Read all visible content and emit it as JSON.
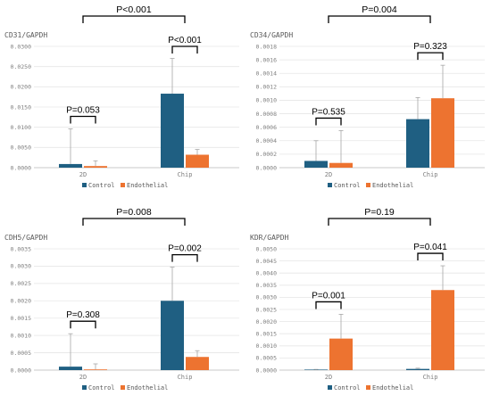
{
  "colors": {
    "control": "#1f5f82",
    "endothelial": "#ed7330",
    "grid": "#e6e6e6",
    "axis": "#c8c8c8",
    "error": "#a6a6a6"
  },
  "legend": [
    "Control",
    "Endothelial"
  ],
  "chart_data": [
    {
      "type": "bar",
      "title": "CD31/GAPDH",
      "categories": [
        "2D",
        "Chip"
      ],
      "series": [
        {
          "name": "Control",
          "values": [
            0.0009,
            0.0183
          ],
          "errors": [
            0.0087,
            0.0087
          ]
        },
        {
          "name": "Endothelial",
          "values": [
            0.0004,
            0.0032
          ],
          "errors": [
            0.0013,
            0.0013
          ]
        }
      ],
      "ylim": [
        0,
        0.03
      ],
      "yticks": [
        "0.0300",
        "0.0250",
        "0.0200",
        "0.0150",
        "0.0100",
        "0.0050",
        "0.0000"
      ],
      "brackets": [
        {
          "label": "P=0.053",
          "scope": "2D"
        },
        {
          "label": "P<0.001",
          "scope": "Chip"
        },
        {
          "label": "P<0.001",
          "scope": "2D vs Chip"
        }
      ],
      "grid": true
    },
    {
      "type": "bar",
      "title": "CD34/GAPDH",
      "categories": [
        "2D",
        "Chip"
      ],
      "series": [
        {
          "name": "Control",
          "values": [
            0.0001,
            0.00072
          ],
          "errors": [
            0.0003,
            0.00032
          ]
        },
        {
          "name": "Endothelial",
          "values": [
            7e-05,
            0.00103
          ],
          "errors": [
            0.00048,
            0.00049
          ]
        }
      ],
      "ylim": [
        0,
        0.0018
      ],
      "yticks": [
        "0.0018",
        "0.0016",
        "0.0014",
        "0.0012",
        "0.0010",
        "0.0008",
        "0.0006",
        "0.0004",
        "0.0002",
        "0.0000"
      ],
      "brackets": [
        {
          "label": "P=0.535",
          "scope": "2D"
        },
        {
          "label": "P=0.323",
          "scope": "Chip"
        },
        {
          "label": "P=0.004",
          "scope": "2D vs Chip"
        }
      ],
      "grid": true
    },
    {
      "type": "bar",
      "title": "CDH5/GAPDH",
      "categories": [
        "2D",
        "Chip"
      ],
      "series": [
        {
          "name": "Control",
          "values": [
            0.0001,
            0.002
          ],
          "errors": [
            0.00095,
            0.00097
          ]
        },
        {
          "name": "Endothelial",
          "values": [
            2e-05,
            0.00038
          ],
          "errors": [
            0.00016,
            0.00018
          ]
        }
      ],
      "ylim": [
        0,
        0.0035
      ],
      "yticks": [
        "0.0035",
        "0.0030",
        "0.0025",
        "0.0020",
        "0.0015",
        "0.0010",
        "0.0005",
        "0.0000"
      ],
      "brackets": [
        {
          "label": "P=0.308",
          "scope": "2D"
        },
        {
          "label": "P=0.002",
          "scope": "Chip"
        },
        {
          "label": "P=0.008",
          "scope": "2D vs Chip"
        }
      ],
      "grid": true
    },
    {
      "type": "bar",
      "title": "KDR/GAPDH",
      "categories": [
        "2D",
        "Chip"
      ],
      "series": [
        {
          "name": "Control",
          "values": [
            1e-05,
            5e-05
          ],
          "errors": [
            2e-05,
            3e-05
          ]
        },
        {
          "name": "Endothelial",
          "values": [
            0.0013,
            0.0033
          ],
          "errors": [
            0.001,
            0.001
          ]
        }
      ],
      "ylim": [
        0,
        0.005
      ],
      "yticks": [
        "0.0050",
        "0.0045",
        "0.0040",
        "0.0035",
        "0.0030",
        "0.0025",
        "0.0020",
        "0.0015",
        "0.0010",
        "0.0005",
        "0.0000"
      ],
      "brackets": [
        {
          "label": "P=0.001",
          "scope": "2D"
        },
        {
          "label": "P=0.041",
          "scope": "Chip"
        },
        {
          "label": "P=0.19",
          "scope": "2D vs Chip"
        }
      ],
      "grid": true
    }
  ]
}
